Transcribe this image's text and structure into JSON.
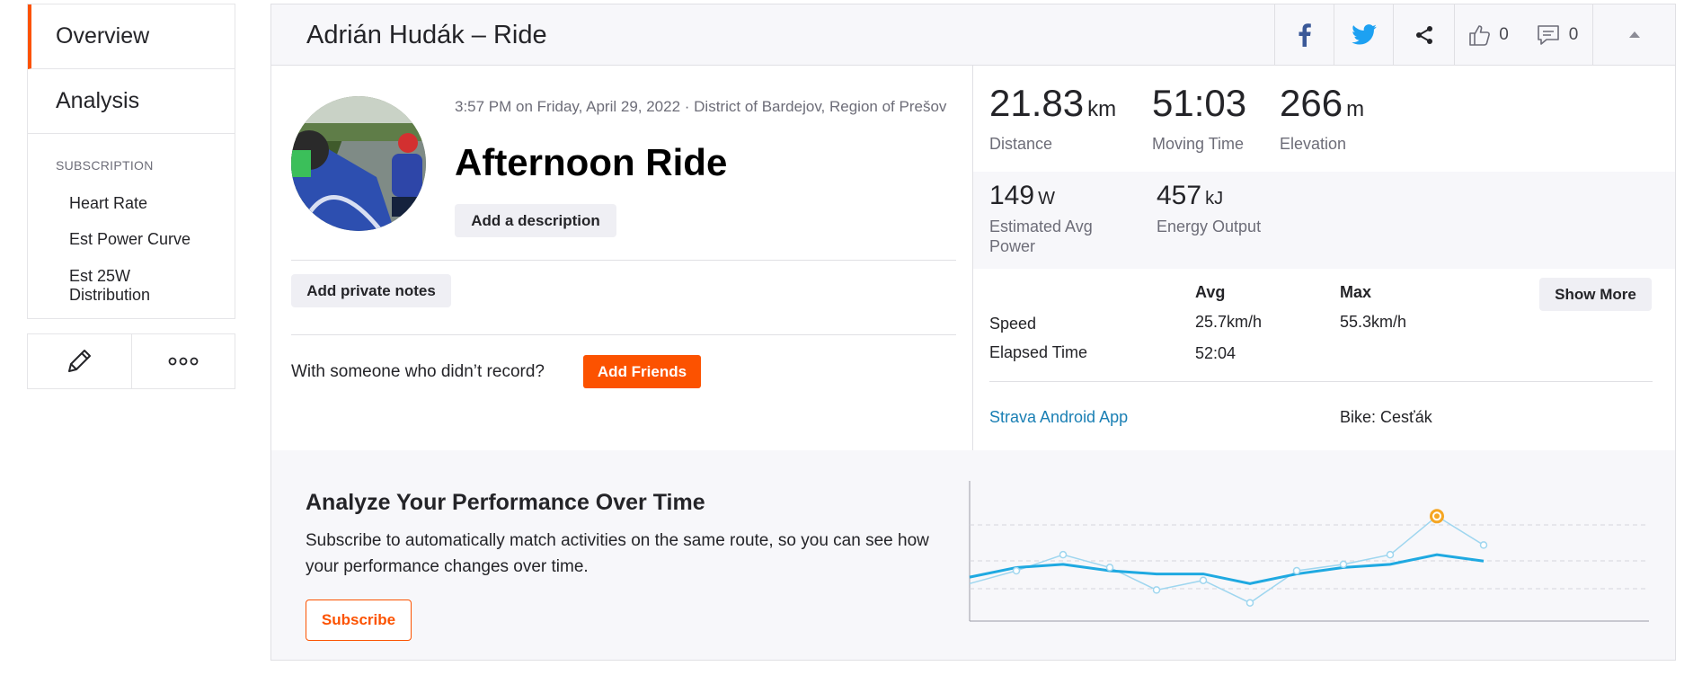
{
  "sidebar": {
    "tabs": [
      {
        "label": "Overview",
        "active": true
      },
      {
        "label": "Analysis",
        "active": false
      }
    ],
    "subscription_heading": "SUBSCRIPTION",
    "links": [
      "Heart Rate",
      "Est Power Curve",
      "Est 25W Distribution"
    ],
    "actions": {
      "edit_icon": "pencil-icon",
      "more_icon": "more-dots-icon"
    }
  },
  "header": {
    "title": "Adrián Hudák – Ride",
    "kudos_count": "0",
    "comment_count": "0",
    "icons": [
      "facebook-icon",
      "twitter-icon",
      "share-icon",
      "thumbs-up-icon",
      "comment-icon",
      "collapse-caret-icon"
    ]
  },
  "activity": {
    "datetime_location": "3:57 PM on Friday, April 29, 2022 · District of Bardejov, Region of Prešov",
    "title": "Afternoon Ride",
    "add_description": "Add a description",
    "add_private_notes": "Add private notes",
    "with_someone": "With someone who didn’t record?",
    "add_friends": "Add Friends"
  },
  "stats": {
    "primary": [
      {
        "value": "21.83",
        "unit": "km",
        "label": "Distance"
      },
      {
        "value": "51:03",
        "unit": "",
        "label": "Moving Time"
      },
      {
        "value": "266",
        "unit": "m",
        "label": "Elevation"
      }
    ],
    "secondary": [
      {
        "value": "149",
        "unit": "W",
        "label": "Estimated Avg Power"
      },
      {
        "value": "457",
        "unit": "kJ",
        "label": "Energy Output"
      }
    ],
    "table": {
      "col_avg": "Avg",
      "col_max": "Max",
      "rows": [
        {
          "label": "Speed",
          "avg": "25.7km/h",
          "max": "55.3km/h"
        },
        {
          "label": "Elapsed Time",
          "avg": "52:04",
          "max": ""
        }
      ]
    },
    "show_more": "Show More",
    "device": "Strava Android App",
    "bike": "Bike: Cesťák"
  },
  "promo": {
    "title": "Analyze Your Performance Over Time",
    "text": "Subscribe to automatically match activities on the same route, so you can see how your performance changes over time.",
    "subscribe": "Subscribe"
  },
  "colors": {
    "brand": "#fc5200",
    "line": "#1fa9e1",
    "line_light": "#9fd6ef",
    "highlight": "#f5a623"
  },
  "chart_data": {
    "type": "line",
    "series": [
      {
        "values": [
          3.0,
          2.7,
          2.6,
          2.8,
          2.9,
          2.9,
          3.2,
          2.9,
          2.7,
          2.6,
          2.3,
          2.5
        ]
      },
      {
        "values": [
          3.2,
          2.8,
          2.3,
          2.7,
          3.4,
          3.1,
          3.8,
          2.8,
          2.6,
          2.3,
          1.1,
          2.0
        ]
      }
    ],
    "highlight_index": 10
  }
}
